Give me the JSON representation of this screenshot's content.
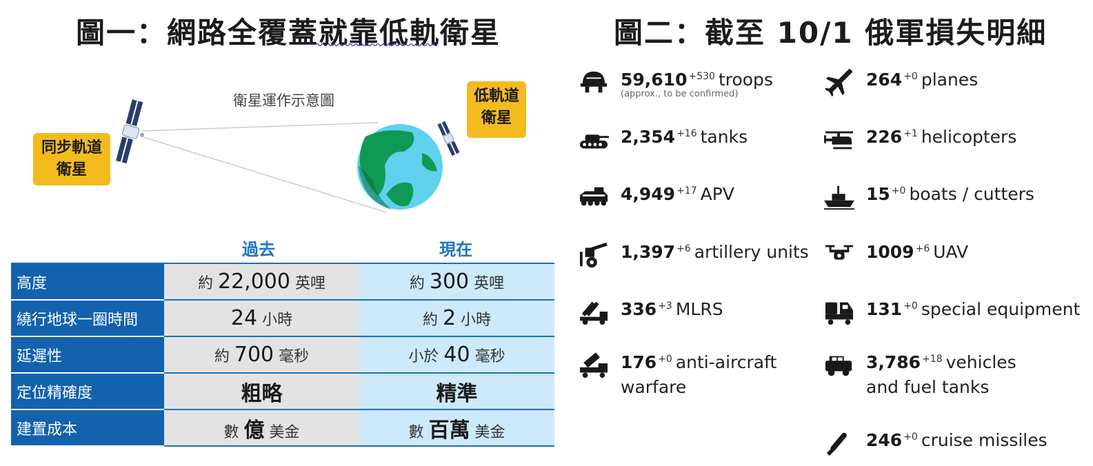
{
  "figure1": {
    "title": "圖一：網路全覆蓋就靠低軌衛星",
    "diagram_caption": "衛星運作示意圖",
    "geo_label_line1": "同步軌道",
    "geo_label_line2": "衛星",
    "leo_label_line1": "低軌道",
    "leo_label_line2": "衛星",
    "column_past": "過去",
    "column_now": "現在",
    "rows": [
      {
        "label": "高度",
        "past_prefix": "約",
        "past_value": "22,000",
        "past_unit": "英哩",
        "now_prefix": "約",
        "now_value": "300",
        "now_unit": "英哩"
      },
      {
        "label": "繞行地球一圈時間",
        "past_prefix": "",
        "past_value": "24",
        "past_unit": "小時",
        "now_prefix": "約",
        "now_value": "2",
        "now_unit": "小時"
      },
      {
        "label": "延遲性",
        "past_prefix": "約",
        "past_value": "700",
        "past_unit": "毫秒",
        "now_prefix": "小於",
        "now_value": "40",
        "now_unit": "毫秒"
      },
      {
        "label": "定位精確度",
        "past_prefix": "",
        "past_value": "粗略",
        "past_unit": "",
        "now_prefix": "",
        "now_value": "精準",
        "now_unit": ""
      },
      {
        "label": "建置成本",
        "past_prefix": "數",
        "past_value": "億",
        "past_unit": "美金",
        "now_prefix": "數",
        "now_value": "百萬",
        "now_unit": "美金"
      }
    ]
  },
  "figure2": {
    "title": "圖二：截至 10/1 俄軍損失明細",
    "items": [
      {
        "icon": "helmet-icon",
        "value": "59,610",
        "delta": "+530",
        "label": "troops",
        "note": "(approx., to be confirmed)"
      },
      {
        "icon": "plane-icon",
        "value": "264",
        "delta": "+0",
        "label": "planes"
      },
      {
        "icon": "tank-icon",
        "value": "2,354",
        "delta": "+16",
        "label": "tanks"
      },
      {
        "icon": "helicopter-icon",
        "value": "226",
        "delta": "+1",
        "label": "helicopters"
      },
      {
        "icon": "apv-icon",
        "value": "4,949",
        "delta": "+17",
        "label": "APV"
      },
      {
        "icon": "boat-icon",
        "value": "15",
        "delta": "+0",
        "label": "boats / cutters"
      },
      {
        "icon": "artillery-icon",
        "value": "1,397",
        "delta": "+6",
        "label": "artillery units"
      },
      {
        "icon": "drone-icon",
        "value": "1009",
        "delta": "+6",
        "label": "UAV"
      },
      {
        "icon": "mlrs-icon",
        "value": "336",
        "delta": "+3",
        "label": "MLRS"
      },
      {
        "icon": "special-equipment-icon",
        "value": "131",
        "delta": "+0",
        "label": "special equipment"
      },
      {
        "icon": "anti-aircraft-icon",
        "value": "176",
        "delta": "+0",
        "label": "anti-aircraft",
        "label2": "warfare"
      },
      {
        "icon": "vehicle-icon",
        "value": "3,786",
        "delta": "+18",
        "label": "vehicles",
        "label2": "and fuel tanks"
      },
      {
        "icon": "missile-icon",
        "value": "246",
        "delta": "+0",
        "label": "cruise missiles"
      }
    ]
  },
  "colors": {
    "label_box": "#f4bb1f",
    "table_label_bg": "#1262ad",
    "past_bg": "#e3e3e3",
    "now_bg": "#cdeafb",
    "column_head": "#1f74c2"
  }
}
